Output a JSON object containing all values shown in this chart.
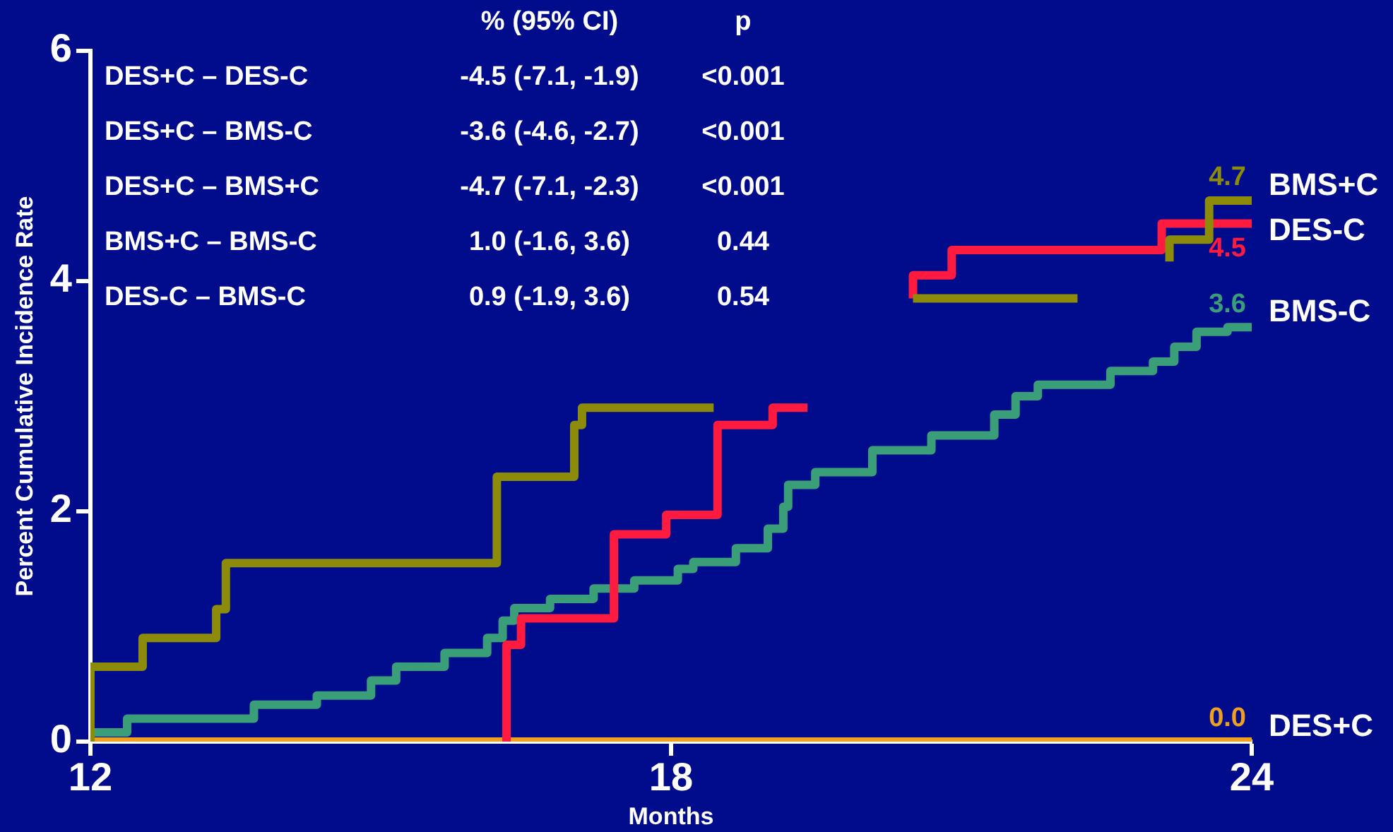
{
  "chart_data": {
    "type": "step",
    "xlabel": "Months",
    "ylabel": "Percent Cumulative Incidence Rate",
    "xlim": [
      12,
      24
    ],
    "xticks": [
      12,
      18,
      24
    ],
    "ylim": [
      0,
      6
    ],
    "yticks": [
      0,
      2,
      4,
      6
    ],
    "grid": false,
    "legend": false,
    "line_style": "solid",
    "marker": "none",
    "annotations": [
      "% (95% CI)",
      "p",
      "DES+C – DES-C",
      "-4.5 (-7.1, -1.9)",
      "<0.001",
      "DES+C – BMS-C",
      "-3.6 (-4.6, -2.7)",
      "<0.001",
      "DES+C – BMS+C",
      "-4.7 (-7.1, -2.3)",
      "<0.001",
      "BMS+C – BMS-C",
      "1.0 (-1.6, 3.6)",
      "0.44",
      "DES-C – BMS-C",
      "0.9 (-1.9, 3.6)",
      "0.54"
    ],
    "series": [
      {
        "name": "BMS+C",
        "color": "#8c8c0a",
        "x": [
          12,
          12,
          12.54,
          13.3,
          13.4,
          16.2,
          17.0,
          17.08,
          17.9,
          18.44,
          null,
          20.5,
          22.2,
          null,
          23.15,
          23.56,
          23.65,
          24
        ],
        "values": [
          0,
          0.5,
          0.65,
          0.9,
          1.15,
          1.55,
          2.3,
          2.75,
          2.9,
          2.9,
          null,
          3.85,
          3.85,
          null,
          4.17,
          4.36,
          4.7,
          4.7
        ],
        "value_labels": [
          null,
          null,
          null,
          null,
          null,
          null,
          null,
          null,
          null,
          null,
          null,
          null,
          null,
          null,
          null,
          null,
          null,
          "4.7"
        ]
      },
      {
        "name": "DES-C",
        "color": "#ff1a40",
        "x": [
          16.3,
          16.3,
          16.45,
          17.41,
          17.95,
          18.48,
          19.05,
          19.34,
          19.41,
          null,
          20.5,
          20.9,
          23.07,
          23.5,
          24
        ],
        "values": [
          0,
          0.26,
          0.84,
          1.07,
          1.8,
          1.97,
          2.75,
          2.9,
          2.9,
          null,
          3.85,
          4.05,
          4.27,
          4.5,
          4.5
        ],
        "value_labels": [
          null,
          null,
          null,
          null,
          null,
          null,
          null,
          null,
          null,
          null,
          null,
          null,
          null,
          null,
          "4.5"
        ]
      },
      {
        "name": "BMS-C",
        "color": "#3a9e78",
        "x": [
          12,
          12.38,
          13.69,
          14.34,
          14.9,
          15.16,
          15.66,
          16.1,
          16.26,
          16.38,
          16.75,
          17.2,
          17.62,
          18.07,
          18.23,
          18.67,
          19.0,
          19.16,
          19.21,
          19.49,
          20.08,
          20.69,
          21.34,
          21.56,
          21.79,
          22.54,
          22.98,
          23.2,
          23.43,
          23.75,
          23.92,
          24
        ],
        "values": [
          0.05,
          0.08,
          0.2,
          0.32,
          0.4,
          0.53,
          0.65,
          0.77,
          0.9,
          1.05,
          1.16,
          1.24,
          1.33,
          1.4,
          1.5,
          1.56,
          1.68,
          1.85,
          2.04,
          2.23,
          2.34,
          2.53,
          2.66,
          2.84,
          3.0,
          3.1,
          3.22,
          3.3,
          3.43,
          3.56,
          3.6,
          3.6
        ],
        "value_labels": [
          null,
          null,
          null,
          null,
          null,
          null,
          null,
          null,
          null,
          null,
          null,
          null,
          null,
          null,
          null,
          null,
          null,
          null,
          null,
          null,
          null,
          null,
          null,
          null,
          null,
          null,
          null,
          null,
          null,
          null,
          null,
          "3.6"
        ]
      },
      {
        "name": "DES+C",
        "color": "#f0a020",
        "x": [
          12,
          24
        ],
        "values": [
          0,
          0
        ],
        "value_labels": [
          null,
          "0.0"
        ]
      }
    ]
  }
}
